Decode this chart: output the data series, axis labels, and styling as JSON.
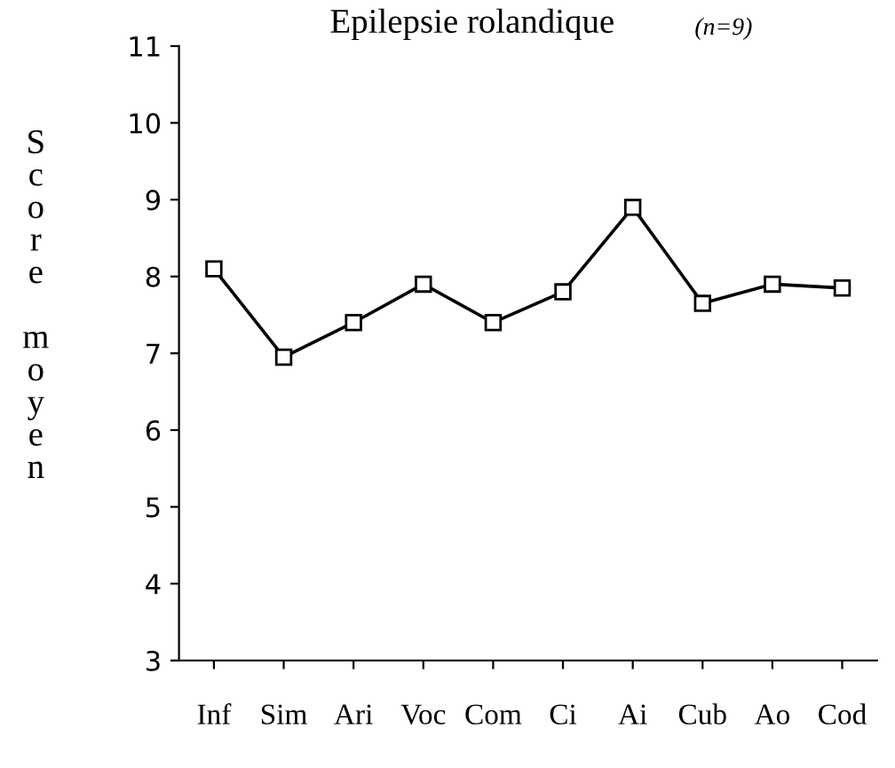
{
  "chart_data": {
    "type": "line",
    "title": "Epilepsie rolandique",
    "subtitle": "(n=9)",
    "ylabel": "Score moyen",
    "categories": [
      "Inf",
      "Sim",
      "Ari",
      "Voc",
      "Com",
      "Ci",
      "Ai",
      "Cub",
      "Ao",
      "Cod"
    ],
    "series": [
      {
        "color": "#000000",
        "values": [
          8.1,
          6.95,
          7.4,
          7.9,
          7.4,
          7.8,
          8.9,
          7.65,
          7.9,
          7.85
        ]
      }
    ],
    "ylim": [
      3,
      11
    ],
    "yticks": [
      3,
      4,
      5,
      6,
      7,
      8,
      9,
      10,
      11
    ],
    "marker": "square",
    "line_style": "solid",
    "grid": false,
    "legend": false
  }
}
